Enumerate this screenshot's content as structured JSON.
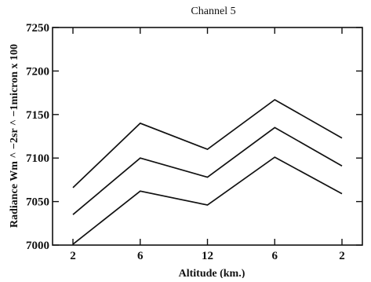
{
  "chart_data": {
    "type": "line",
    "title": "Channel 5",
    "xlabel": "Altitude (km.)",
    "ylabel": "Radiance Wm ^ −2sr ^ −1micron x 100",
    "categories": [
      "2",
      "6",
      "12",
      "6",
      "2"
    ],
    "ylim": [
      7000,
      7250
    ],
    "yticks": [
      7000,
      7050,
      7100,
      7150,
      7200,
      7250
    ],
    "series": [
      {
        "values": [
          7066,
          7140,
          7110,
          7167,
          7123
        ]
      },
      {
        "values": [
          7035,
          7100,
          7078,
          7135,
          7091
        ]
      },
      {
        "values": [
          7001,
          7062,
          7046,
          7101,
          7059
        ]
      }
    ],
    "line_color": "#111111",
    "grid": false,
    "legend": "none"
  }
}
